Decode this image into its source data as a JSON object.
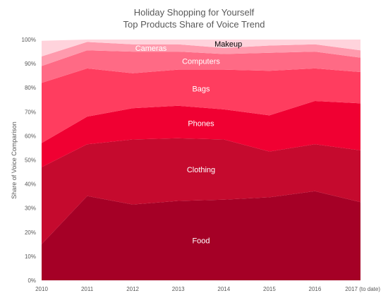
{
  "chart_data": {
    "type": "area",
    "stacked": true,
    "title": "Holiday Shopping for Yourself",
    "subtitle": "Top Products Share of Voice Trend",
    "xlabel": "",
    "ylabel": "Share of Voice Comparison",
    "categories": [
      "2010",
      "2011",
      "2012",
      "2013",
      "2014",
      "2015",
      "2016",
      "2017 (to date)"
    ],
    "ylim": [
      0,
      100
    ],
    "yticks": [
      "0%",
      "10%",
      "20%",
      "30%",
      "40%",
      "50%",
      "60%",
      "70%",
      "80%",
      "90%",
      "100%"
    ],
    "grid": false,
    "legend": "none",
    "series": [
      {
        "name": "Food",
        "values": [
          15,
          35,
          31.5,
          33,
          33.5,
          34.5,
          37,
          32.5
        ],
        "color": "#A50026",
        "label_color": "#ffffff"
      },
      {
        "name": "Clothing",
        "values": [
          32,
          21.5,
          27,
          26,
          25,
          19,
          19.5,
          21.5
        ],
        "color": "#C50A2E",
        "label_color": "#ffffff"
      },
      {
        "name": "Phones",
        "values": [
          10,
          11.5,
          13,
          13.5,
          12.5,
          15,
          18,
          19.5
        ],
        "color": "#F00032",
        "label_color": "#ffffff"
      },
      {
        "name": "Bags",
        "values": [
          25,
          20,
          14.5,
          15,
          16.5,
          18.5,
          13.5,
          13
        ],
        "color": "#FF3D5F",
        "label_color": "#ffffff"
      },
      {
        "name": "Computers",
        "values": [
          7,
          7.5,
          9,
          7.5,
          6.5,
          7.5,
          7,
          6
        ],
        "color": "#FF6A85",
        "label_color": "#ffffff"
      },
      {
        "name": "Cameras",
        "values": [
          4,
          3.5,
          3,
          3,
          2.5,
          3,
          3,
          3
        ],
        "color": "#FF9AAD",
        "label_color": "#ffffff"
      },
      {
        "name": "Makeup",
        "values": [
          6.5,
          1,
          2,
          2,
          3.5,
          2.5,
          2,
          4.5
        ],
        "color": "#FFD3DC",
        "label_color": "#000000"
      }
    ]
  }
}
